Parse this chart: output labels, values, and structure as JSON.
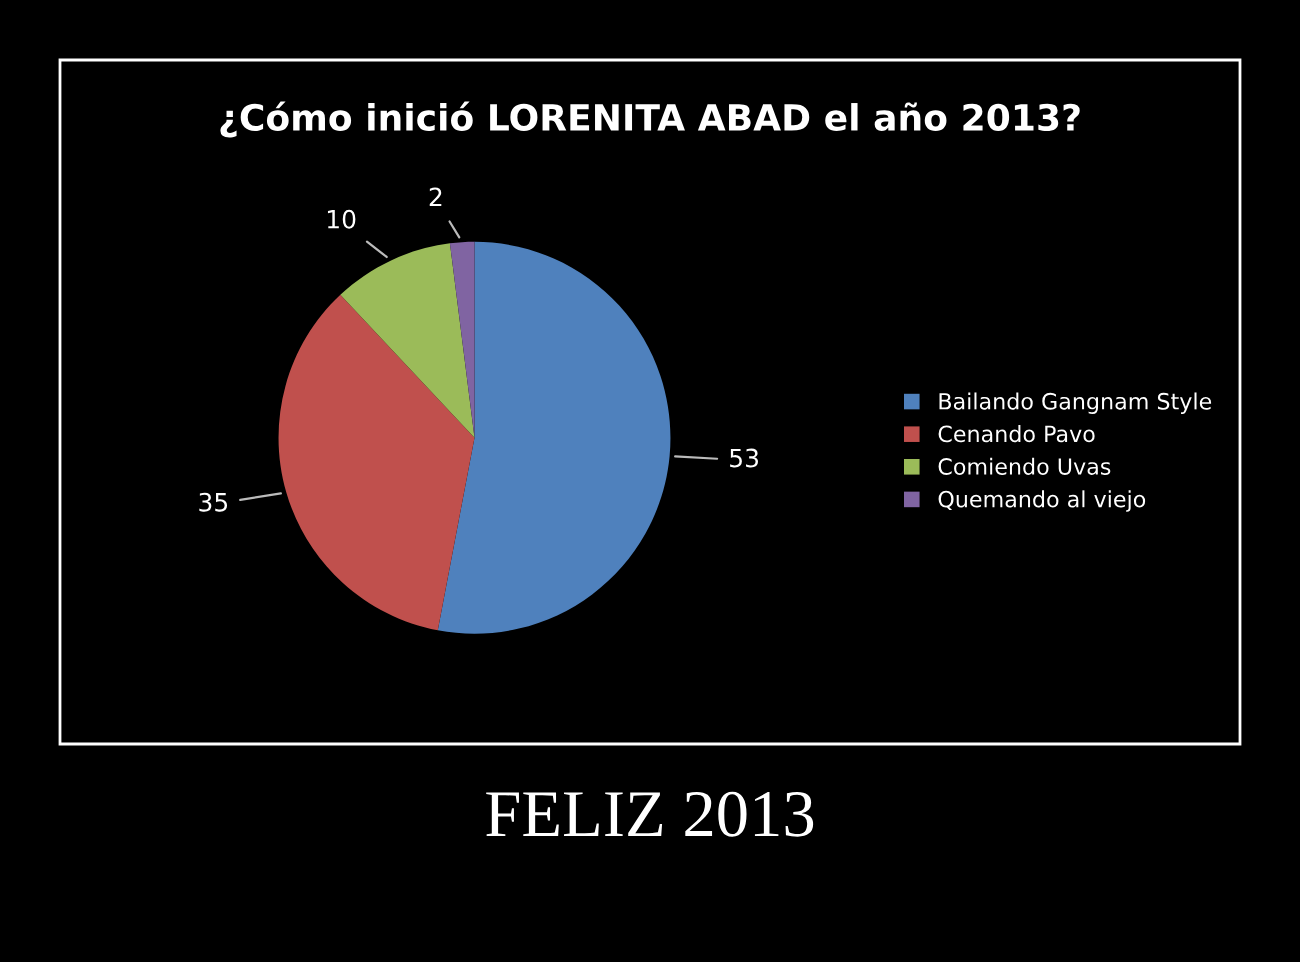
{
  "chart_data": {
    "type": "pie",
    "title": "¿Cómo inició LORENITA ABAD el año 2013?",
    "categories": [
      "Bailando Gangnam Style",
      "Cenando Pavo",
      "Comiendo Uvas",
      "Quemando al viejo"
    ],
    "values": [
      53,
      35,
      10,
      2
    ],
    "colors": [
      "#4f81bd",
      "#c0504d",
      "#9bbb59",
      "#8064a2"
    ],
    "data_labels": true,
    "legend": "right",
    "annotations": [
      "FELIZ 2013"
    ]
  }
}
